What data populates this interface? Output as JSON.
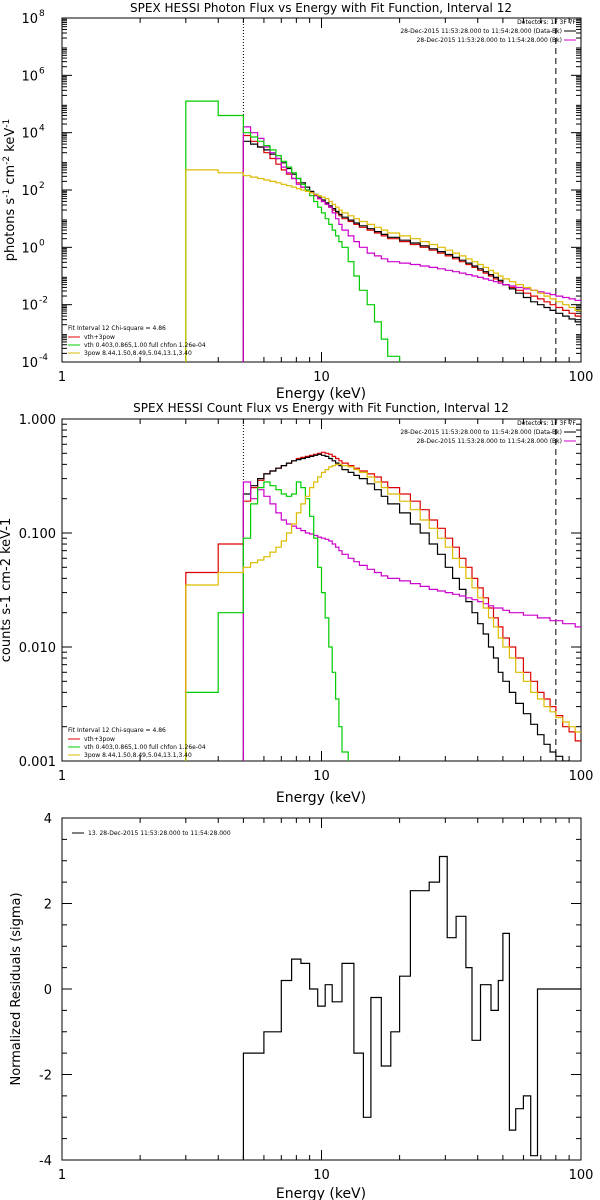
{
  "chart_data": [
    {
      "type": "line",
      "title": "SPEX HESSI Photon Flux vs Energy with Fit Function, Interval 12",
      "xlabel": "Energy (keV)",
      "ylabel_base": "photons s",
      "ylabel_sup1": "-1",
      "ylabel_mid": " cm",
      "ylabel_sup2": "-2",
      "ylabel_end": " keV",
      "ylabel_sup3": "-1",
      "xscale": "log",
      "yscale": "log",
      "xlim": [
        1,
        100
      ],
      "ylim_exp": [
        -4,
        8
      ],
      "xticks": [
        {
          "v": 1,
          "label": "1"
        },
        {
          "v": 10,
          "label": "10"
        },
        {
          "v": 100,
          "label": "100"
        }
      ],
      "yticks_exp": [
        -4,
        -2,
        0,
        2,
        4,
        6,
        8
      ],
      "ytick_base": "10",
      "vlines": [
        {
          "x": 5.0,
          "style": "dotted"
        },
        {
          "x": 80,
          "style": "dashed"
        }
      ],
      "legend_tr": {
        "detectors": "Detectors: 1F 3F 7F",
        "entries": [
          {
            "text": "28-Dec-2015 11:53:28.000 to 11:54:28.000 (Data-Bk)",
            "color": "#000000"
          },
          {
            "text": "28-Dec-2015 11:53:28.000 to 11:54:28.000 (Bk)",
            "color": "#cc00cc"
          }
        ]
      },
      "legend_bl": {
        "header": "Fit Interval 12   Chi-square = 4.86",
        "entries": [
          {
            "text": "vth+3pow",
            "color": "#dd0000"
          },
          {
            "text": "vth 0.403,0.865,1.00   full chfon 1.26e-04",
            "color": "#00cc00"
          },
          {
            "text": "3pow 8.44,1.50,8.49,5.04,13.1,3.40",
            "color": "#ddbb00"
          }
        ]
      },
      "edges": [
        3.0,
        4.0,
        5.0,
        5.33,
        5.67,
        6.0,
        6.33,
        6.67,
        7.0,
        7.33,
        7.67,
        8.0,
        8.33,
        8.67,
        9.0,
        9.33,
        9.67,
        10.0,
        10.33,
        10.67,
        11.0,
        11.33,
        11.67,
        12.0,
        12.67,
        13.33,
        14.0,
        15.0,
        16.0,
        17.0,
        18.0,
        20.0,
        22.0,
        24.0,
        26.0,
        28.0,
        30.0,
        32.0,
        34.0,
        36.0,
        38.0,
        40.0,
        42.0,
        44.0,
        46.0,
        48.0,
        50.0,
        53.0,
        56.0,
        60.0,
        64.0,
        68.0,
        72.0,
        76.0,
        80.0,
        85.0,
        90.0,
        95.0,
        100.0
      ],
      "series": [
        {
          "name": "vth+3pow",
          "color": "#dd0000",
          "start": 2,
          "values_exp": [
            3.9,
            3.7,
            3.5,
            3.3,
            3.1,
            2.9,
            2.7,
            2.55,
            2.4,
            2.25,
            2.1,
            2.0,
            1.9,
            1.8,
            1.7,
            1.6,
            1.5,
            1.4,
            1.3,
            1.2,
            1.1,
            1.0,
            0.9,
            0.8,
            0.7,
            0.6,
            0.5,
            0.4,
            0.3,
            0.2,
            0.1,
            0.0,
            -0.1,
            -0.2,
            -0.3,
            -0.4,
            -0.5,
            -0.6,
            -0.7,
            -0.8,
            -0.9,
            -1.0,
            -1.1,
            -1.2,
            -1.3,
            -1.4,
            -1.5,
            -1.6,
            -1.7,
            -1.8,
            -1.9,
            -2.0,
            -2.1,
            -2.2,
            -2.3,
            -2.4
          ]
        },
        {
          "name": "Data-Bk",
          "color": "#000000",
          "start": 2,
          "values_exp": [
            3.7,
            3.6,
            3.5,
            3.4,
            3.25,
            3.1,
            2.95,
            2.75,
            2.55,
            2.4,
            2.25,
            2.1,
            1.95,
            1.85,
            1.75,
            1.65,
            1.55,
            1.45,
            1.35,
            1.25,
            1.15,
            1.05,
            0.95,
            0.85,
            0.75,
            0.65,
            0.55,
            0.45,
            0.35,
            0.25,
            0.15,
            0.05,
            -0.05,
            -0.15,
            -0.25,
            -0.35,
            -0.45,
            -0.55,
            -0.65,
            -0.75,
            -0.85,
            -0.95,
            -1.05,
            -1.15,
            -1.3,
            -1.45,
            -1.6,
            -1.75,
            -1.9,
            -2.0,
            -2.1,
            -2.2,
            -2.3,
            -2.4,
            -2.5,
            -2.6
          ]
        },
        {
          "name": "Bk",
          "color": "#cc00cc",
          "start": 2,
          "values_exp": [
            4.2,
            4.0,
            3.8,
            3.5,
            3.3,
            3.1,
            2.8,
            2.6,
            2.4,
            2.2,
            2.1,
            2.0,
            1.9,
            1.8,
            1.7,
            1.6,
            1.5,
            1.4,
            1.2,
            1.0,
            0.8,
            0.6,
            0.4,
            0.2,
            0.0,
            -0.2,
            -0.3,
            -0.4,
            -0.5,
            -0.55,
            -0.6,
            -0.65,
            -0.7,
            -0.75,
            -0.8,
            -0.85,
            -0.9,
            -0.95,
            -1.0,
            -1.05,
            -1.1,
            -1.15,
            -1.2,
            -1.25,
            -1.3,
            -1.35,
            -1.4,
            -1.45,
            -1.5,
            -1.55,
            -1.6,
            -1.65,
            -1.7,
            -1.75,
            -1.8,
            -1.85
          ]
        },
        {
          "name": "vth",
          "color": "#00cc00",
          "start": 0,
          "values_exp": [
            5.1,
            4.6,
            4.0,
            3.85,
            3.7,
            3.55,
            3.4,
            3.2,
            3.0,
            2.8,
            2.6,
            2.4,
            2.2,
            2.0,
            1.8,
            1.6,
            1.4,
            1.2,
            1.0,
            0.8,
            0.6,
            0.4,
            0.2,
            0.0,
            -0.5,
            -1.0,
            -1.5,
            -2.0,
            -2.6,
            -3.2,
            -3.8,
            -4.3
          ]
        },
        {
          "name": "3pow",
          "color": "#ddbb00",
          "start": 0,
          "values_exp": [
            2.7,
            2.6,
            2.5,
            2.45,
            2.4,
            2.35,
            2.3,
            2.25,
            2.2,
            2.15,
            2.1,
            2.05,
            2.0,
            1.95,
            1.9,
            1.85,
            1.8,
            1.75,
            1.7,
            1.6,
            1.5,
            1.4,
            1.3,
            1.2,
            1.1,
            1.0,
            0.9,
            0.8,
            0.7,
            0.6,
            0.5,
            0.4,
            0.3,
            0.2,
            0.1,
            0.0,
            -0.1,
            -0.2,
            -0.3,
            -0.4,
            -0.5,
            -0.6,
            -0.7,
            -0.8,
            -0.9,
            -1.0,
            -1.1,
            -1.2,
            -1.3,
            -1.4,
            -1.5,
            -1.6,
            -1.7,
            -1.8,
            -1.9,
            -2.0,
            -2.1,
            -2.2
          ]
        }
      ]
    },
    {
      "type": "line",
      "title": "SPEX HESSI Count Flux vs Energy with Fit Function, Interval 12",
      "xlabel": "Energy (keV)",
      "ylabel": "counts s-1 cm-2 keV-1",
      "xscale": "log",
      "yscale": "log",
      "xlim": [
        1,
        100
      ],
      "ylim": [
        0.001,
        1.0
      ],
      "xticks": [
        {
          "v": 1,
          "label": "1"
        },
        {
          "v": 10,
          "label": "10"
        },
        {
          "v": 100,
          "label": "100"
        }
      ],
      "yticks": [
        {
          "v": 0.001,
          "label": "0.001"
        },
        {
          "v": 0.01,
          "label": "0.010"
        },
        {
          "v": 0.1,
          "label": "0.100"
        },
        {
          "v": 1.0,
          "label": "1.000"
        }
      ],
      "vlines": [
        {
          "x": 5.0,
          "style": "dotted"
        },
        {
          "x": 80,
          "style": "dashed"
        }
      ],
      "legend_tr": {
        "detectors": "Detectors: 1F 3F 7F",
        "entries": [
          {
            "text": "28-Dec-2015 11:53:28.000 to 11:54:28.000 (Data-Bk)",
            "color": "#000000"
          },
          {
            "text": "28-Dec-2015 11:53:28.000 to 11:54:28.000 (Bk)",
            "color": "#cc00cc"
          }
        ]
      },
      "legend_bl": {
        "header": "Fit Interval 12   Chi-square = 4.86",
        "entries": [
          {
            "text": "vth+3pow",
            "color": "#dd0000"
          },
          {
            "text": "vth 0.403,0.865,1.00   full chfon 1.26e-04",
            "color": "#00cc00"
          },
          {
            "text": "3pow 8.44,1.50,8.49,5.04,13.1,3.40",
            "color": "#ddbb00"
          }
        ]
      },
      "edges": [
        3.0,
        4.0,
        5.0,
        5.33,
        5.67,
        6.0,
        6.33,
        6.67,
        7.0,
        7.33,
        7.67,
        8.0,
        8.33,
        8.67,
        9.0,
        9.33,
        9.67,
        10.0,
        10.33,
        10.67,
        11.0,
        11.33,
        11.67,
        12.0,
        12.67,
        13.33,
        14.0,
        15.0,
        16.0,
        17.0,
        18.0,
        20.0,
        22.0,
        24.0,
        26.0,
        28.0,
        30.0,
        32.0,
        34.0,
        36.0,
        38.0,
        40.0,
        42.0,
        44.0,
        46.0,
        48.0,
        50.0,
        53.0,
        56.0,
        60.0,
        64.0,
        68.0,
        72.0,
        76.0,
        80.0,
        85.0,
        90.0,
        95.0,
        100.0
      ],
      "series": [
        {
          "name": "vth+3pow",
          "color": "#dd0000",
          "start": 0,
          "values": [
            0.045,
            0.08,
            0.19,
            0.25,
            0.29,
            0.33,
            0.35,
            0.37,
            0.39,
            0.41,
            0.43,
            0.45,
            0.46,
            0.47,
            0.48,
            0.49,
            0.5,
            0.51,
            0.5,
            0.49,
            0.47,
            0.45,
            0.43,
            0.41,
            0.39,
            0.37,
            0.35,
            0.33,
            0.31,
            0.28,
            0.25,
            0.22,
            0.19,
            0.16,
            0.13,
            0.11,
            0.09,
            0.075,
            0.06,
            0.05,
            0.04,
            0.033,
            0.027,
            0.022,
            0.018,
            0.015,
            0.012,
            0.01,
            0.008,
            0.006,
            0.005,
            0.004,
            0.0035,
            0.003,
            0.0025,
            0.002,
            0.0018,
            0.0015
          ]
        },
        {
          "name": "Data-Bk",
          "color": "#000000",
          "start": 2,
          "values": [
            0.22,
            0.26,
            0.3,
            0.33,
            0.35,
            0.37,
            0.39,
            0.41,
            0.43,
            0.44,
            0.45,
            0.46,
            0.47,
            0.48,
            0.49,
            0.48,
            0.47,
            0.45,
            0.43,
            0.41,
            0.39,
            0.36,
            0.34,
            0.32,
            0.3,
            0.27,
            0.24,
            0.21,
            0.18,
            0.15,
            0.12,
            0.1,
            0.08,
            0.065,
            0.05,
            0.04,
            0.032,
            0.025,
            0.02,
            0.016,
            0.013,
            0.01,
            0.008,
            0.006,
            0.005,
            0.004,
            0.0032,
            0.0026,
            0.0021,
            0.0017,
            0.0014,
            0.0012,
            0.0011,
            0.001,
            0.0009,
            0.0008
          ]
        },
        {
          "name": "Bk",
          "color": "#cc00cc",
          "start": 2,
          "values": [
            0.28,
            0.2,
            0.24,
            0.21,
            0.18,
            0.15,
            0.13,
            0.12,
            0.115,
            0.11,
            0.105,
            0.1,
            0.098,
            0.095,
            0.092,
            0.09,
            0.088,
            0.085,
            0.08,
            0.075,
            0.07,
            0.065,
            0.06,
            0.056,
            0.052,
            0.048,
            0.045,
            0.042,
            0.04,
            0.038,
            0.036,
            0.034,
            0.032,
            0.031,
            0.03,
            0.029,
            0.028,
            0.027,
            0.026,
            0.025,
            0.024,
            0.023,
            0.022,
            0.022,
            0.021,
            0.02,
            0.02,
            0.019,
            0.019,
            0.018,
            0.018,
            0.017,
            0.017,
            0.016,
            0.016,
            0.015
          ]
        },
        {
          "name": "vth",
          "color": "#00cc00",
          "start": 0,
          "values": [
            0.004,
            0.02,
            0.09,
            0.18,
            0.25,
            0.28,
            0.26,
            0.24,
            0.22,
            0.21,
            0.22,
            0.28,
            0.25,
            0.2,
            0.14,
            0.09,
            0.05,
            0.03,
            0.018,
            0.01,
            0.006,
            0.0035,
            0.002,
            0.0012,
            0.0008
          ]
        },
        {
          "name": "3pow",
          "color": "#ddbb00",
          "start": 0,
          "values": [
            0.035,
            0.045,
            0.05,
            0.055,
            0.058,
            0.062,
            0.068,
            0.075,
            0.085,
            0.1,
            0.12,
            0.15,
            0.18,
            0.21,
            0.25,
            0.28,
            0.31,
            0.34,
            0.36,
            0.38,
            0.39,
            0.4,
            0.4,
            0.39,
            0.38,
            0.36,
            0.34,
            0.31,
            0.28,
            0.25,
            0.22,
            0.19,
            0.16,
            0.13,
            0.11,
            0.09,
            0.075,
            0.06,
            0.05,
            0.04,
            0.033,
            0.027,
            0.022,
            0.018,
            0.015,
            0.012,
            0.01,
            0.008,
            0.006,
            0.005,
            0.004,
            0.0035,
            0.003,
            0.0027,
            0.0024,
            0.0022,
            0.002,
            0.0018
          ]
        }
      ]
    },
    {
      "type": "line",
      "title": "",
      "xlabel": "Energy (keV)",
      "ylabel": "Normalized Residuals (sigma)",
      "xscale": "log",
      "xlim": [
        1,
        100
      ],
      "ylim": [
        -4,
        4
      ],
      "xticks": [
        {
          "v": 1,
          "label": "1"
        },
        {
          "v": 10,
          "label": "10"
        },
        {
          "v": 100,
          "label": "100"
        }
      ],
      "yticks": [
        {
          "v": -4,
          "label": "-4"
        },
        {
          "v": -2,
          "label": "-2"
        },
        {
          "v": 0,
          "label": "0"
        },
        {
          "v": 2,
          "label": "2"
        },
        {
          "v": 4,
          "label": "4"
        }
      ],
      "legend_tl": {
        "entries": [
          {
            "text": "13. 28-Dec-2015 11:53:28.000 to 11:54:28.000",
            "color": "#000000"
          }
        ]
      },
      "edges": [
        5.0,
        6.0,
        7.0,
        7.67,
        8.33,
        9.0,
        9.67,
        10.33,
        11.0,
        12.0,
        13.33,
        14.5,
        15.5,
        17.0,
        18.5,
        20.0,
        22.0,
        24.0,
        26.0,
        28.5,
        30.5,
        33.0,
        36.0,
        38.0,
        41.0,
        45.0,
        48.0,
        50.0,
        53.0,
        56.0,
        60.0,
        64.0,
        68.0,
        72.0,
        76.0,
        80.0,
        90.0,
        100.0
      ],
      "series": [
        {
          "name": "residuals",
          "color": "#000000",
          "start": 0,
          "values": [
            -1.5,
            -1.0,
            0.2,
            0.7,
            0.6,
            0.0,
            -0.4,
            0.1,
            -0.3,
            0.6,
            -1.5,
            -3.0,
            -0.2,
            -1.8,
            -1.0,
            0.3,
            2.3,
            2.3,
            2.5,
            3.1,
            1.2,
            1.7,
            0.5,
            -1.2,
            0.1,
            -0.5,
            0.2,
            1.3,
            -3.3,
            -2.8,
            -2.5,
            -3.9,
            0.0,
            0.0,
            0.0,
            0.0,
            0.0
          ]
        }
      ]
    }
  ]
}
